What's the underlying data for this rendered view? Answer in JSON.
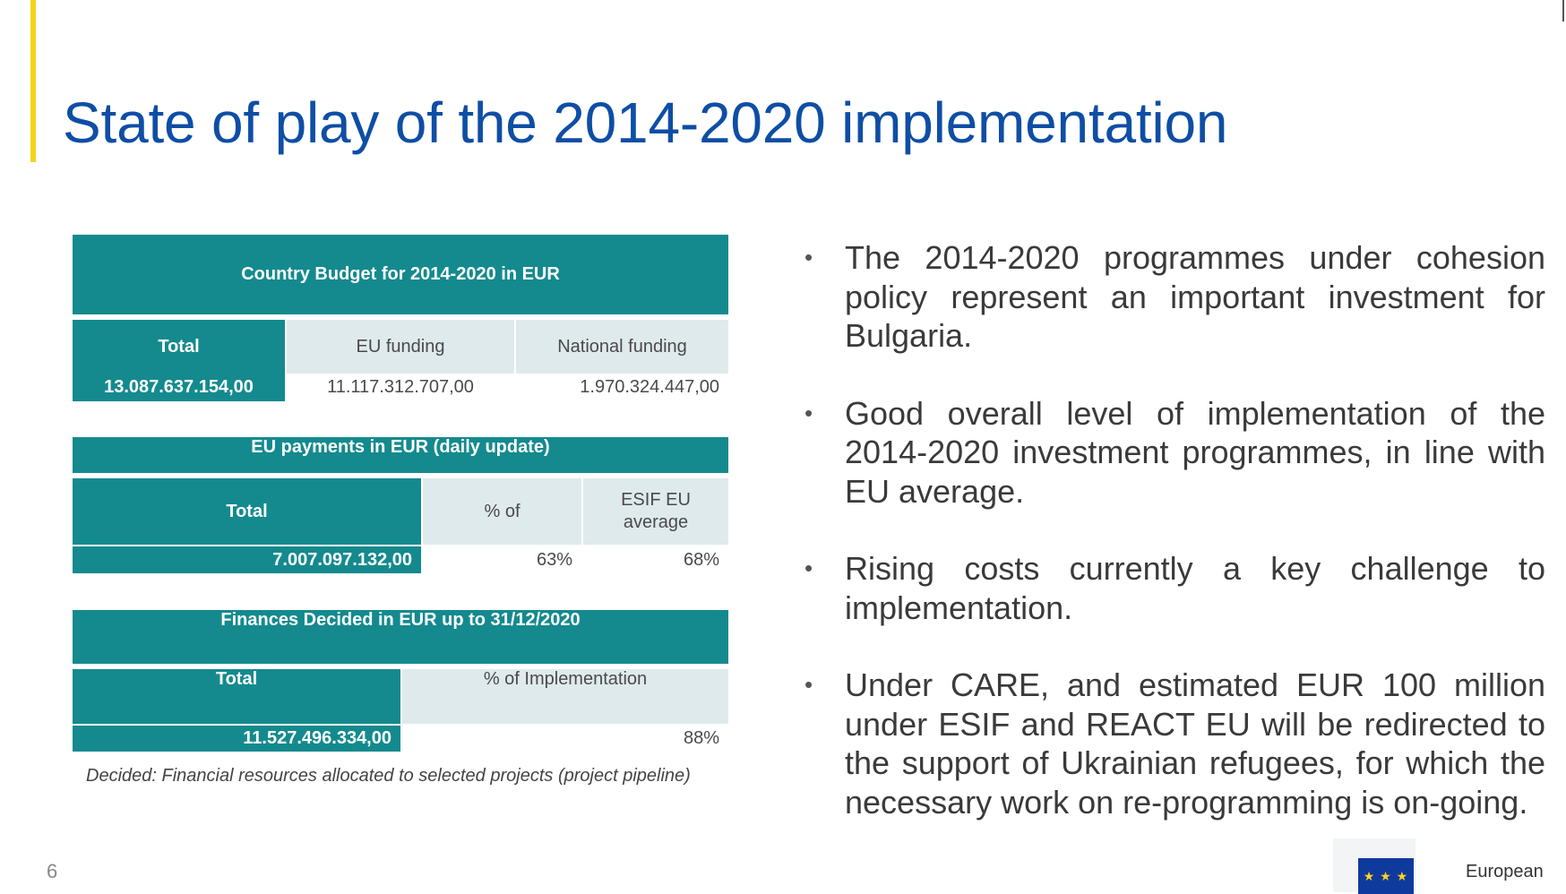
{
  "slide": {
    "title": "State of play of the 2014-2020 implementation",
    "page_number": "6",
    "footer_org": "European"
  },
  "budget_table": {
    "header": "Country Budget for 2014-2020 in EUR",
    "col_total": "Total",
    "col_eu": "EU funding",
    "col_national": "National funding",
    "val_total": "13.087.637.154,00",
    "val_eu": "11.117.312.707,00",
    "val_national": "1.970.324.447,00"
  },
  "payments_table": {
    "header": "EU payments in EUR (daily update)",
    "col_total": "Total",
    "col_pct": "% of",
    "col_avg_line1": "ESIF EU",
    "col_avg_line2": "average",
    "val_total": "7.007.097.132,00",
    "val_pct": "63%",
    "val_avg": "68%"
  },
  "decided_table": {
    "header": "Finances Decided in EUR up to 31/12/2020",
    "col_total": "Total",
    "col_impl": "% of Implementation",
    "val_total": "11.527.496.334,00",
    "val_impl": "88%"
  },
  "note": "Decided: Financial resources allocated to selected projects (project pipeline)",
  "bullets": [
    "The 2014-2020 programmes under cohesion policy represent an important investment for Bulgaria.",
    "Good overall level of implementation of the 2014-2020 investment programmes, in line with EU average.",
    "Rising costs currently a key challenge to implementation.",
    "Under CARE, and estimated EUR 100 million under ESIF and REACT EU will be redirected to the support of Ukrainian refugees, for which the necessary work on re-programming is on-going."
  ],
  "bullet_marker": "•",
  "colors": {
    "title": "#0e4ea5",
    "accent": "#f5d31b",
    "teal": "#148a8e",
    "light_cell": "#dfeaec"
  }
}
